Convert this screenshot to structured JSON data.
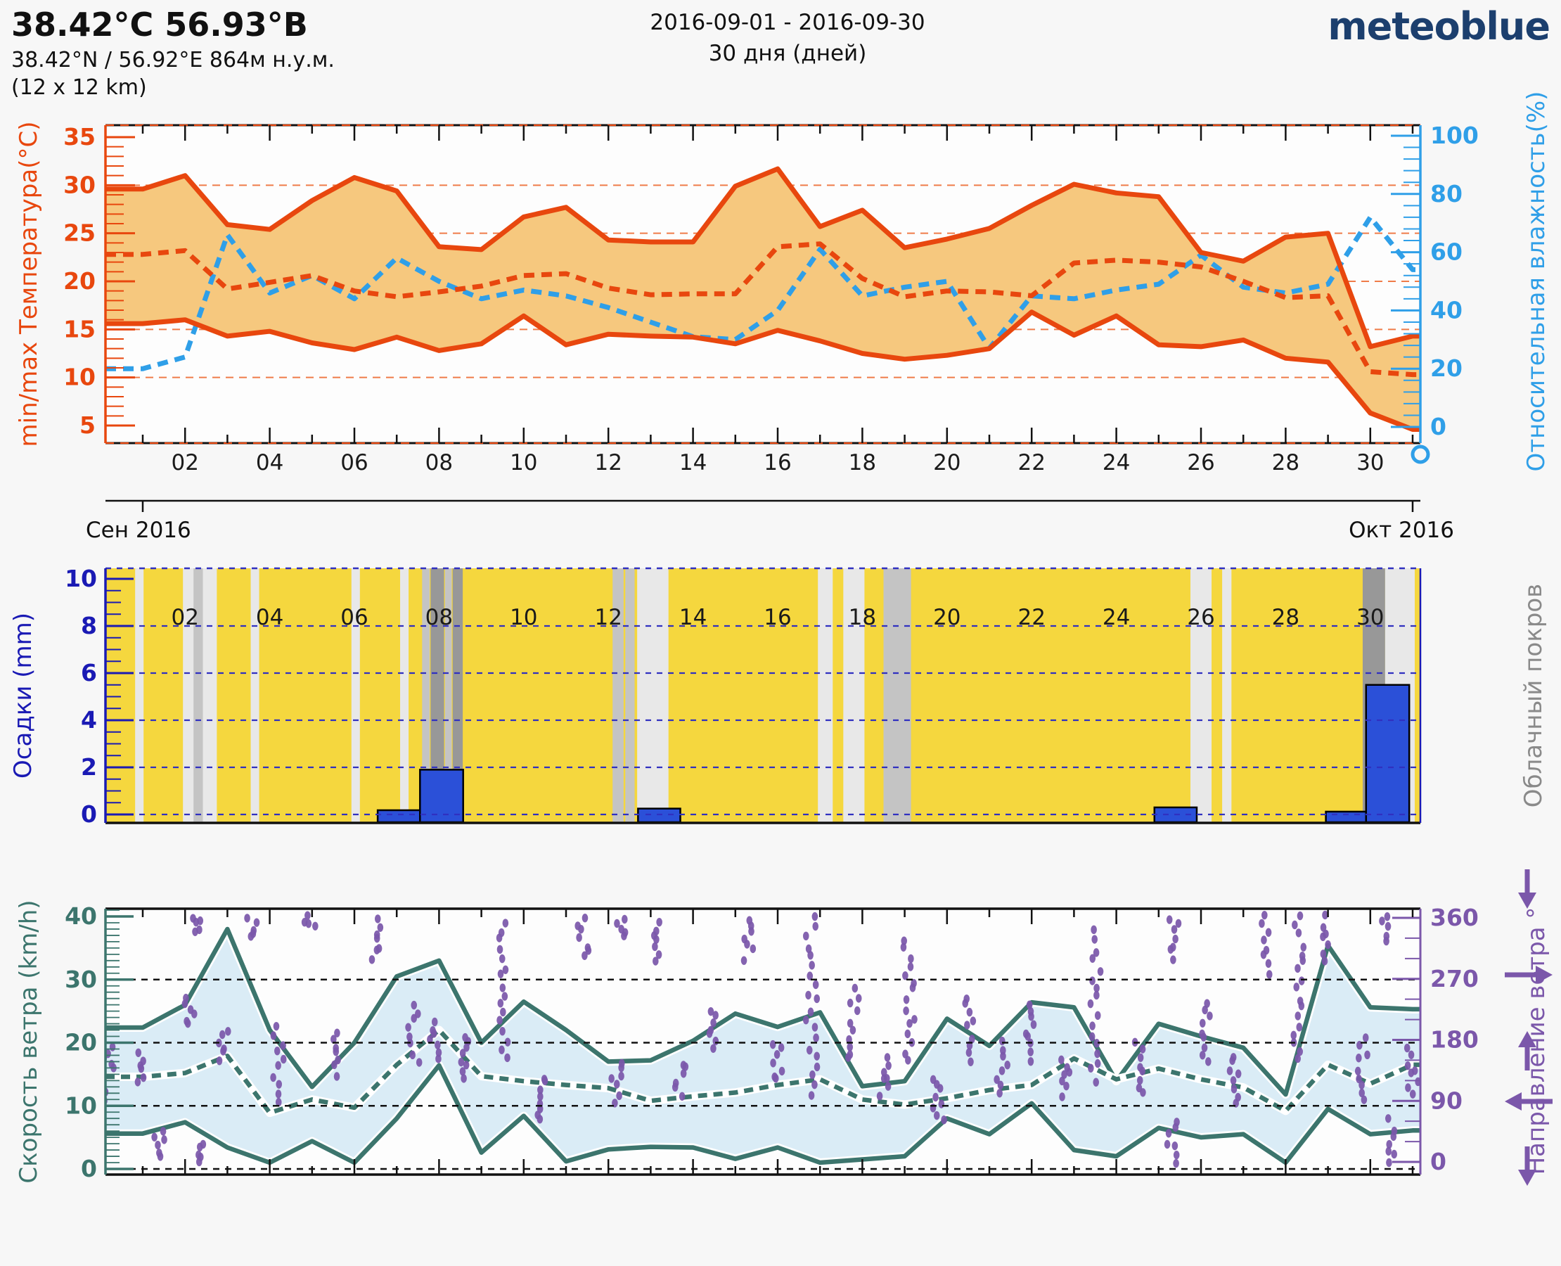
{
  "header": {
    "title": "38.42°C 56.93°B",
    "subtitle": "38.42°N / 56.92°E   864м н.у.м.",
    "resolution": "(12 x 12 km)",
    "date_range": "2016-09-01 - 2016-09-30",
    "duration": "30 дня (дней)",
    "logo": "meteoblue"
  },
  "months": {
    "left": "Сен 2016",
    "right": "Окт 2016"
  },
  "day_labels": [
    "02",
    "04",
    "06",
    "08",
    "10",
    "12",
    "14",
    "16",
    "18",
    "20",
    "22",
    "24",
    "26",
    "28",
    "30"
  ],
  "colors": {
    "temp_line": "#E8470E",
    "temp_fill": "#F6C87E",
    "temp_grid": "#EF7C49",
    "humidity": "#2F9FE8",
    "precip_axis": "#1A1AB4",
    "precip_bar": "#2B50D8",
    "precip_bg": "#F5D73E",
    "cloud_label": "#8A8A8A",
    "wind_line": "#3C756D",
    "wind_fill": "#DAECF6",
    "direction": "#7B57AA",
    "logo_blue": "#1C3F6E",
    "page_bg": "#F7F7F7"
  },
  "chart_data": [
    {
      "type": "area",
      "panel": "temperature-humidity",
      "ylabel": "min/max Температура(°C)",
      "y2label": "Относительная влажность(%)",
      "ylim": [
        3.2,
        36.2
      ],
      "yticks": [
        5,
        10,
        15,
        20,
        25,
        30,
        35
      ],
      "gridlines": [
        10,
        15,
        20,
        25,
        30
      ],
      "y2lim": [
        -5.6,
        103.7
      ],
      "y2ticks": [
        0,
        20,
        40,
        60,
        80,
        100
      ],
      "x": "days 1-31 (Sep 2016, daily)",
      "fill_between": [
        "tmax",
        "tmin"
      ],
      "fill_color": "#F6C87E",
      "series": [
        {
          "name": "tmax",
          "label": "max temperature",
          "color": "#E8470E",
          "style": "solid",
          "values": [
            29.6,
            31.0,
            25.9,
            25.4,
            28.4,
            30.8,
            29.4,
            23.6,
            23.3,
            26.7,
            27.7,
            24.3,
            24.1,
            24.1,
            29.9,
            31.7,
            25.7,
            27.4,
            23.5,
            24.4,
            25.5,
            27.9,
            30.1,
            29.2,
            28.8,
            23.0,
            22.1,
            24.6,
            25.0,
            13.2,
            14.3
          ]
        },
        {
          "name": "tmin",
          "label": "min temperature",
          "color": "#E8470E",
          "style": "solid",
          "values": [
            15.6,
            16.0,
            14.3,
            14.8,
            13.6,
            12.9,
            14.2,
            12.8,
            13.5,
            16.4,
            13.4,
            14.5,
            14.3,
            14.2,
            13.5,
            14.9,
            13.8,
            12.5,
            11.9,
            12.3,
            13.0,
            16.8,
            14.4,
            16.4,
            13.4,
            13.2,
            13.9,
            12.0,
            11.6,
            6.3,
            4.6
          ]
        },
        {
          "name": "tmean",
          "label": "mean temperature",
          "color": "#E8470E",
          "style": "dashed",
          "values": [
            22.8,
            23.2,
            19.2,
            19.9,
            20.6,
            19.0,
            18.4,
            18.9,
            19.5,
            20.6,
            20.8,
            19.3,
            18.6,
            18.7,
            18.7,
            23.6,
            23.9,
            20.3,
            18.4,
            19.0,
            18.9,
            18.5,
            21.9,
            22.2,
            22.0,
            21.5,
            20.0,
            18.3,
            18.5,
            10.6,
            10.3
          ]
        },
        {
          "name": "humidity",
          "label": "relative humidity",
          "axis": "y2",
          "color": "#2F9FE8",
          "style": "dashed",
          "values": [
            20,
            24,
            66,
            46,
            52,
            44,
            58,
            50,
            44,
            47,
            45,
            41,
            36,
            31,
            30,
            40,
            61,
            45,
            48,
            50,
            27,
            45,
            44,
            47,
            49,
            59,
            48,
            46,
            49,
            72,
            54
          ]
        }
      ]
    },
    {
      "type": "bar",
      "panel": "precipitation-clouds",
      "ylabel": "Осадки (mm)",
      "y2label": "Облачный покров",
      "ylim": [
        -0.35,
        10.45
      ],
      "yticks": [
        0,
        2,
        4,
        6,
        8,
        10
      ],
      "gridlines": [
        2,
        4,
        6,
        8
      ],
      "background": "#F5D73E",
      "bar_color": "#2B50D8",
      "bars": [
        {
          "from": 6.55,
          "to": 7.55,
          "mm": 0.18
        },
        {
          "from": 7.55,
          "to": 8.57,
          "mm": 1.9
        },
        {
          "from": 12.7,
          "to": 13.7,
          "mm": 0.25
        },
        {
          "from": 24.9,
          "to": 25.9,
          "mm": 0.3
        },
        {
          "from": 28.95,
          "to": 29.9,
          "mm": 0.12
        },
        {
          "from": 29.9,
          "to": 30.92,
          "mm": 5.5
        }
      ],
      "shade_colors": {
        "1": "#E8E8E8",
        "2": "#C4C4C4",
        "3": "#989898"
      },
      "cloud_bands": [
        {
          "from": 0.82,
          "to": 1.02,
          "shade": 1
        },
        {
          "from": 1.95,
          "to": 2.75,
          "shade": 1
        },
        {
          "from": 2.2,
          "to": 2.42,
          "shade": 2
        },
        {
          "from": 3.55,
          "to": 3.75,
          "shade": 1
        },
        {
          "from": 5.93,
          "to": 6.13,
          "shade": 1
        },
        {
          "from": 7.08,
          "to": 7.28,
          "shade": 1
        },
        {
          "from": 7.6,
          "to": 7.78,
          "shade": 2
        },
        {
          "from": 7.8,
          "to": 8.12,
          "shade": 3
        },
        {
          "from": 8.14,
          "to": 8.3,
          "shade": 2
        },
        {
          "from": 8.32,
          "to": 8.56,
          "shade": 3
        },
        {
          "from": 12.1,
          "to": 12.36,
          "shade": 2
        },
        {
          "from": 12.4,
          "to": 12.62,
          "shade": 2
        },
        {
          "from": 12.68,
          "to": 13.42,
          "shade": 1
        },
        {
          "from": 16.95,
          "to": 17.3,
          "shade": 1
        },
        {
          "from": 17.55,
          "to": 18.05,
          "shade": 1
        },
        {
          "from": 18.5,
          "to": 19.15,
          "shade": 2
        },
        {
          "from": 25.75,
          "to": 26.25,
          "shade": 1
        },
        {
          "from": 26.5,
          "to": 26.72,
          "shade": 1
        },
        {
          "from": 29.82,
          "to": 30.35,
          "shade": 3
        },
        {
          "from": 30.35,
          "to": 31.05,
          "shade": 1
        }
      ]
    },
    {
      "type": "line-scatter",
      "panel": "wind",
      "ylabel": "Скорость ветра (km/h)",
      "y2label": "Направление ветра °",
      "ylim": [
        -0.9,
        41.2
      ],
      "yticks": [
        0,
        10,
        20,
        30,
        40
      ],
      "gridlines": [
        10,
        20,
        30
      ],
      "y2ticks": [
        0,
        90,
        180,
        270,
        360
      ],
      "fill_color": "#DAECF6",
      "line_color": "#3C756D",
      "direction_color": "#7B57AA",
      "series": [
        {
          "name": "wind_max",
          "style": "solid",
          "values": [
            22.4,
            26.0,
            38.0,
            22.0,
            13.0,
            20.0,
            30.5,
            33.0,
            20.0,
            26.5,
            22.0,
            17.0,
            17.2,
            20.3,
            24.6,
            22.5,
            24.8,
            13.1,
            13.9,
            23.8,
            19.5,
            26.4,
            25.6,
            13.9,
            23.0,
            21.0,
            19.2,
            11.8,
            35.4,
            25.6,
            25.3
          ]
        },
        {
          "name": "wind_mean",
          "style": "dashed",
          "values": [
            14.6,
            15.2,
            17.9,
            8.9,
            11.0,
            9.7,
            16.5,
            22.0,
            14.7,
            13.9,
            13.3,
            12.8,
            10.8,
            11.5,
            12.1,
            13.3,
            14.2,
            11.0,
            10.2,
            11.2,
            12.5,
            13.3,
            17.5,
            14.2,
            15.9,
            14.2,
            12.9,
            9.2,
            16.5,
            13.5,
            16.5
          ]
        },
        {
          "name": "wind_min",
          "style": "solid",
          "values": [
            5.6,
            7.4,
            3.4,
            1.0,
            4.4,
            1.0,
            8.0,
            16.4,
            2.6,
            8.4,
            1.2,
            3.1,
            3.5,
            3.4,
            1.6,
            3.4,
            1.0,
            1.5,
            2.0,
            8.0,
            5.5,
            10.4,
            3.0,
            2.0,
            6.5,
            5.0,
            5.5,
            1.0,
            9.5,
            5.5,
            6.1
          ]
        }
      ],
      "direction_streaks": [
        [
          0.18,
          88,
          108
        ],
        [
          0.2,
          140,
          170
        ],
        [
          1.0,
          120,
          160
        ],
        [
          1.4,
          10,
          45
        ],
        [
          2.1,
          200,
          240
        ],
        [
          2.25,
          340,
          360
        ],
        [
          2.3,
          0,
          30
        ],
        [
          2.9,
          150,
          195
        ],
        [
          3.6,
          330,
          360
        ],
        [
          4.2,
          90,
          200
        ],
        [
          4.95,
          345,
          360
        ],
        [
          5.5,
          130,
          190
        ],
        [
          6.5,
          300,
          355
        ],
        [
          7.4,
          150,
          230
        ],
        [
          7.9,
          150,
          205
        ],
        [
          8.6,
          120,
          185
        ],
        [
          9.5,
          150,
          355
        ],
        [
          10.4,
          60,
          125
        ],
        [
          11.4,
          300,
          360
        ],
        [
          12.2,
          90,
          150
        ],
        [
          12.3,
          330,
          360
        ],
        [
          13.1,
          300,
          350
        ],
        [
          13.7,
          100,
          145
        ],
        [
          14.5,
          170,
          225
        ],
        [
          15.3,
          300,
          360
        ],
        [
          16.0,
          120,
          175
        ],
        [
          16.8,
          100,
          360
        ],
        [
          17.8,
          150,
          255
        ],
        [
          18.5,
          100,
          155
        ],
        [
          19.1,
          150,
          330
        ],
        [
          19.8,
          60,
          125
        ],
        [
          20.5,
          150,
          245
        ],
        [
          21.3,
          100,
          175
        ],
        [
          22.0,
          150,
          235
        ],
        [
          22.8,
          100,
          150
        ],
        [
          23.5,
          120,
          340
        ],
        [
          24.5,
          100,
          175
        ],
        [
          25.3,
          0,
          60
        ],
        [
          25.35,
          300,
          360
        ],
        [
          26.1,
          150,
          235
        ],
        [
          26.8,
          90,
          155
        ],
        [
          27.5,
          280,
          360
        ],
        [
          28.3,
          150,
          360
        ],
        [
          29.0,
          300,
          360
        ],
        [
          29.8,
          90,
          185
        ],
        [
          30.3,
          330,
          360
        ],
        [
          30.5,
          0,
          60
        ],
        [
          31.0,
          100,
          165
        ]
      ],
      "arrows": [
        "down",
        "right",
        "up",
        "left",
        "down"
      ]
    }
  ]
}
